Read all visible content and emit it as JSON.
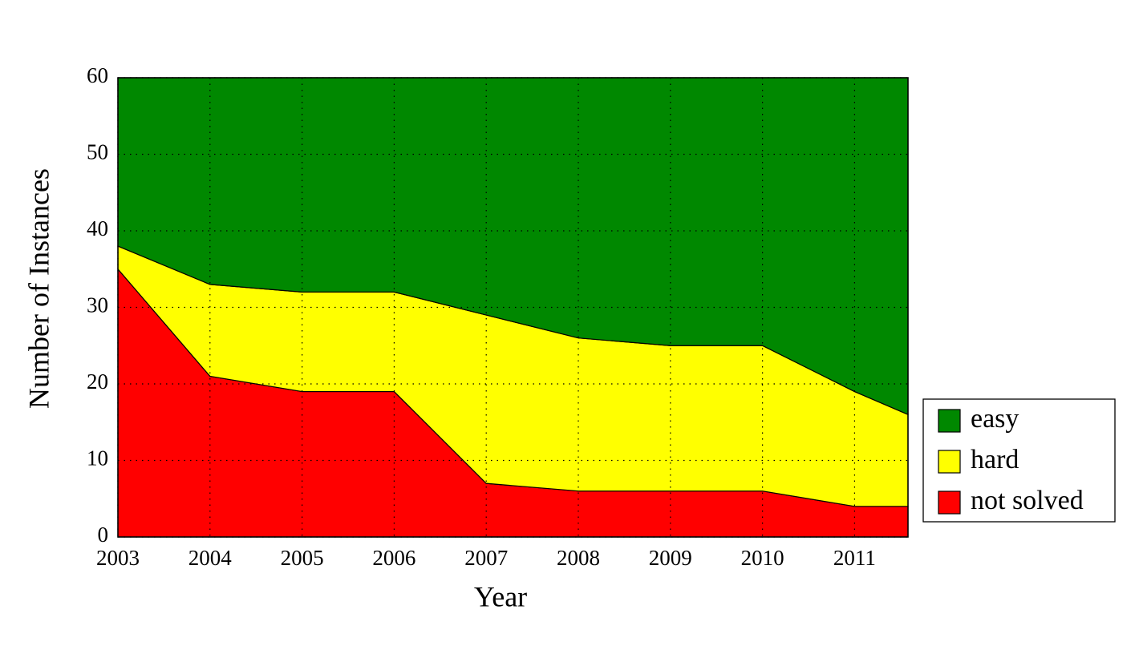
{
  "chart_data": {
    "type": "stacked-area",
    "x_label": "Year",
    "y_label": "Number of Instances",
    "x": [
      2003,
      2004,
      2005,
      2006,
      2007,
      2008,
      2009,
      2010,
      2011,
      2011.58
    ],
    "series": [
      {
        "name": "not solved",
        "color": "#ff0000",
        "values": [
          35,
          21,
          19,
          19,
          7,
          6,
          6,
          6,
          4,
          4
        ]
      },
      {
        "name": "hard",
        "color": "#ffff00",
        "values": [
          3,
          12,
          13,
          13,
          22,
          20,
          19,
          19,
          15,
          12
        ]
      },
      {
        "name": "easy",
        "color": "#008800",
        "values": [
          22,
          27,
          28,
          28,
          31,
          34,
          35,
          35,
          41,
          44
        ]
      }
    ],
    "xlim": [
      2003,
      2011.58
    ],
    "ylim": [
      0,
      60
    ],
    "xticks": [
      2003,
      2004,
      2005,
      2006,
      2007,
      2008,
      2009,
      2010,
      2011
    ],
    "yticks": [
      0,
      10,
      20,
      30,
      40,
      50,
      60
    ],
    "grid": true,
    "legend": "outside right bottom"
  }
}
